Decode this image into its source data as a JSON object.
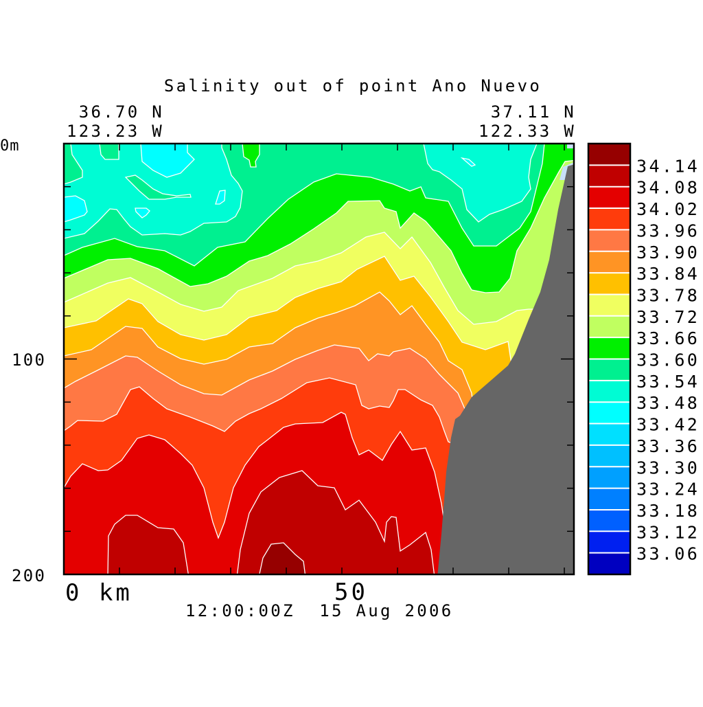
{
  "chart_data": {
    "type": "heatmap",
    "title": "Salinity out of point Ano Nuevo",
    "top_left_label": {
      "lat": "36.70 N",
      "lon": "123.23 W"
    },
    "top_right_label": {
      "lat": "37.11 N",
      "lon": "122.33 W"
    },
    "xlabel": "km",
    "ylabel": "m",
    "x_range": [
      0,
      92
    ],
    "y_range": [
      0,
      200
    ],
    "y_axis_inverted": true,
    "x_tick_step": 10,
    "y_tick_step": 20,
    "x_tick_labels": [
      {
        "value": 0,
        "text": "0 km"
      },
      {
        "value": 50,
        "text": "50"
      }
    ],
    "y_tick_labels": [
      {
        "value": 0,
        "text": "0m"
      },
      {
        "value": 100,
        "text": "100"
      },
      {
        "value": 200,
        "text": "200"
      }
    ],
    "timestamp": "12:00:00Z  15 Aug 2006",
    "colorbar": {
      "levels": [
        "34.14",
        "34.08",
        "34.02",
        "33.96",
        "33.90",
        "33.84",
        "33.78",
        "33.72",
        "33.66",
        "33.60",
        "33.54",
        "33.48",
        "33.42",
        "33.36",
        "33.30",
        "33.24",
        "33.18",
        "33.12",
        "33.06"
      ],
      "colors": [
        "#960000",
        "#c00000",
        "#e40000",
        "#ff3c0c",
        "#ff7844",
        "#ff9424",
        "#ffc000",
        "#f0ff60",
        "#c0ff60",
        "#00f000",
        "#00f090",
        "#00fcd4",
        "#00ffff",
        "#00e0ff",
        "#00c0ff",
        "#00a0ff",
        "#0080ff",
        "#0060ff",
        "#0020f0",
        "#0000c0"
      ]
    },
    "land_color": "#666666",
    "grid": false
  }
}
